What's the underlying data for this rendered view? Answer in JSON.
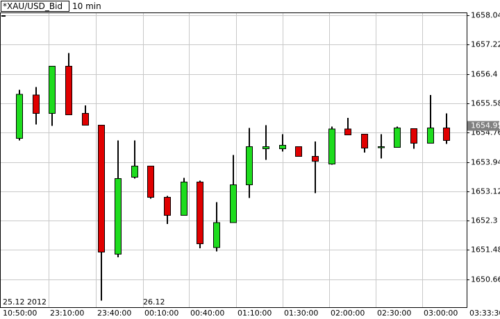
{
  "chart_data": {
    "type": "candlestick",
    "title": "*XAU/USD_Bid",
    "subtitle": "10 min",
    "open": [
      1654.6,
      1655.81,
      1655.3,
      1656.62,
      1655.3,
      1654.97,
      1651.36,
      1653.52,
      1653.83,
      1652.95,
      1652.45,
      1653.38,
      1651.55,
      1652.25,
      1653.3,
      1654.31,
      1654.31,
      1654.37,
      1654.1,
      1653.88,
      1654.86,
      1654.72,
      1654.35,
      1654.35,
      1654.87,
      1654.47,
      1654.89
    ],
    "high": [
      1655.96,
      1656.04,
      1656.62,
      1656.99,
      1655.52,
      1654.97,
      1654.54,
      1654.54,
      1653.83,
      1652.99,
      1653.5,
      1653.42,
      1652.82,
      1654.14,
      1654.89,
      1654.97,
      1654.72,
      1654.37,
      1654.51,
      1654.93,
      1655.17,
      1654.72,
      1654.72,
      1654.93,
      1654.87,
      1655.81,
      1655.3
    ],
    "low": [
      1654.54,
      1654.99,
      1654.95,
      1655.26,
      1654.97,
      1650.06,
      1651.28,
      1653.48,
      1652.91,
      1652.21,
      1652.45,
      1651.53,
      1651.44,
      1652.25,
      1652.93,
      1654.0,
      1654.23,
      1654.1,
      1653.07,
      1653.86,
      1654.7,
      1654.2,
      1654.04,
      1654.35,
      1654.31,
      1654.47,
      1654.45
    ],
    "close": [
      1655.83,
      1655.3,
      1656.62,
      1655.26,
      1654.97,
      1651.42,
      1653.48,
      1653.83,
      1652.95,
      1652.45,
      1653.38,
      1651.65,
      1652.25,
      1653.3,
      1654.37,
      1654.37,
      1654.41,
      1654.1,
      1653.96,
      1654.86,
      1654.7,
      1654.33,
      1654.37,
      1654.89,
      1654.47,
      1654.89,
      1654.54
    ],
    "up_color": "#1edc1e",
    "down_color": "#e00000",
    "ylim": [
      1649.88,
      1658.12
    ],
    "yticks": [
      1658.04,
      1657.22,
      1656.4,
      1655.58,
      1654.76,
      1653.94,
      1653.12,
      1652.3,
      1651.48,
      1650.66
    ],
    "last_price": 1654.95,
    "x_labels": [
      "10:50:00",
      "23:10:00",
      "23:40:00",
      "00:10:00",
      "00:40:00",
      "01:10:00",
      "01:30:00",
      "02:00:00",
      "02:30:00",
      "03:00:00",
      "03:33:30"
    ],
    "date_labels": [
      "25.12 2012",
      "26.12"
    ],
    "grid": true
  }
}
